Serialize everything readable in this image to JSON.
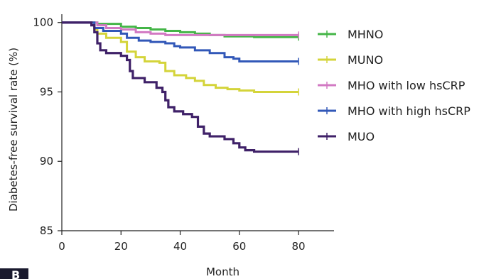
{
  "panel_label": "B",
  "chart_data": {
    "type": "line",
    "xlabel": "Month",
    "ylabel": "Diabetes-free survival rate (%)",
    "xlim": [
      0,
      92
    ],
    "ylim": [
      85,
      100.6
    ],
    "xticks": [
      0,
      20,
      40,
      60,
      80
    ],
    "yticks": [
      85,
      90,
      95,
      100
    ],
    "grid": false,
    "legend_position": "right",
    "series": [
      {
        "name": "MHNO",
        "color": "#44b547",
        "points": [
          [
            0,
            100
          ],
          [
            10,
            100
          ],
          [
            12,
            99.9
          ],
          [
            20,
            99.7
          ],
          [
            25,
            99.6
          ],
          [
            30,
            99.5
          ],
          [
            35,
            99.4
          ],
          [
            40,
            99.3
          ],
          [
            45,
            99.2
          ],
          [
            50,
            99.1
          ],
          [
            55,
            99.0
          ],
          [
            60,
            99.0
          ],
          [
            65,
            98.95
          ],
          [
            70,
            98.95
          ],
          [
            80,
            98.95
          ]
        ]
      },
      {
        "name": "MUNO",
        "color": "#d4d43a",
        "points": [
          [
            0,
            100
          ],
          [
            10,
            100
          ],
          [
            11,
            99.5
          ],
          [
            12,
            99.2
          ],
          [
            15,
            98.9
          ],
          [
            20,
            98.6
          ],
          [
            22,
            97.9
          ],
          [
            25,
            97.5
          ],
          [
            28,
            97.2
          ],
          [
            33,
            97.1
          ],
          [
            35,
            96.5
          ],
          [
            38,
            96.2
          ],
          [
            42,
            96.0
          ],
          [
            45,
            95.8
          ],
          [
            48,
            95.5
          ],
          [
            52,
            95.3
          ],
          [
            56,
            95.2
          ],
          [
            60,
            95.1
          ],
          [
            65,
            95.0
          ],
          [
            70,
            95.0
          ],
          [
            80,
            95.0
          ]
        ]
      },
      {
        "name": "MHO with low hsCRP",
        "color": "#d279c3",
        "points": [
          [
            0,
            100
          ],
          [
            10,
            100
          ],
          [
            12,
            99.8
          ],
          [
            15,
            99.6
          ],
          [
            20,
            99.5
          ],
          [
            25,
            99.3
          ],
          [
            30,
            99.2
          ],
          [
            35,
            99.1
          ],
          [
            40,
            99.1
          ],
          [
            50,
            99.1
          ],
          [
            60,
            99.1
          ],
          [
            70,
            99.1
          ],
          [
            80,
            99.1
          ]
        ]
      },
      {
        "name": "MHO with high hsCRP",
        "color": "#3258b8",
        "points": [
          [
            0,
            100
          ],
          [
            10,
            100
          ],
          [
            11,
            99.6
          ],
          [
            14,
            99.4
          ],
          [
            20,
            99.2
          ],
          [
            22,
            98.9
          ],
          [
            26,
            98.7
          ],
          [
            30,
            98.6
          ],
          [
            35,
            98.5
          ],
          [
            38,
            98.3
          ],
          [
            40,
            98.2
          ],
          [
            45,
            98.0
          ],
          [
            50,
            97.8
          ],
          [
            55,
            97.5
          ],
          [
            58,
            97.4
          ],
          [
            60,
            97.2
          ],
          [
            65,
            97.2
          ],
          [
            70,
            97.2
          ],
          [
            80,
            97.2
          ]
        ]
      },
      {
        "name": "MUO",
        "color": "#3f2168",
        "points": [
          [
            0,
            100
          ],
          [
            8,
            100
          ],
          [
            10,
            99.8
          ],
          [
            11,
            99.3
          ],
          [
            12,
            98.5
          ],
          [
            13,
            98.0
          ],
          [
            15,
            97.8
          ],
          [
            20,
            97.6
          ],
          [
            22,
            97.3
          ],
          [
            23,
            96.5
          ],
          [
            24,
            96.0
          ],
          [
            28,
            95.7
          ],
          [
            32,
            95.3
          ],
          [
            34,
            95.0
          ],
          [
            35,
            94.4
          ],
          [
            36,
            93.9
          ],
          [
            38,
            93.6
          ],
          [
            41,
            93.4
          ],
          [
            44,
            93.2
          ],
          [
            46,
            92.5
          ],
          [
            48,
            92.0
          ],
          [
            50,
            91.8
          ],
          [
            55,
            91.6
          ],
          [
            58,
            91.3
          ],
          [
            60,
            91.0
          ],
          [
            62,
            90.8
          ],
          [
            65,
            90.7
          ],
          [
            70,
            90.7
          ],
          [
            80,
            90.7
          ]
        ]
      }
    ]
  }
}
